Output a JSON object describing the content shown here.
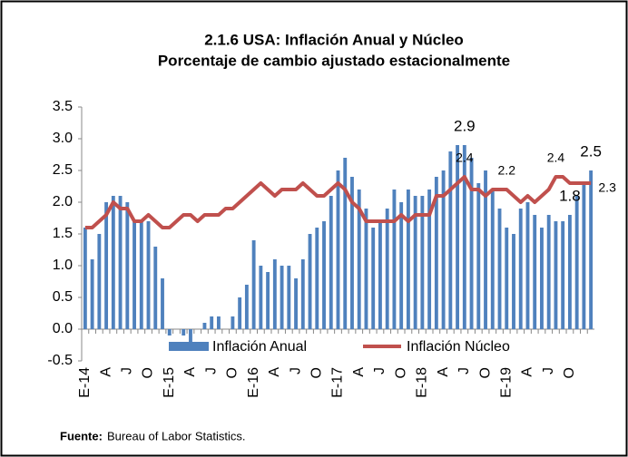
{
  "chart_data": {
    "type": "bar-line",
    "title": "2.1.6  USA: Inflación Anual y Núcleo",
    "subtitle": "Porcentaje de cambio ajustado estacionalmente",
    "categories": [
      "E-14",
      null,
      null,
      "A",
      null,
      null,
      "J",
      null,
      null,
      "O",
      null,
      null,
      "E-15",
      null,
      null,
      "A",
      null,
      null,
      "J",
      null,
      null,
      "O",
      null,
      null,
      "E-16",
      null,
      null,
      "A",
      null,
      null,
      "J",
      null,
      null,
      "O",
      null,
      null,
      "E-17",
      null,
      null,
      "A",
      null,
      null,
      "J",
      null,
      null,
      "O",
      null,
      null,
      "E-18",
      null,
      null,
      "A",
      null,
      null,
      "J",
      null,
      null,
      "O",
      null,
      null,
      "E-19",
      null,
      null,
      "A",
      null,
      null,
      "J",
      null,
      null,
      "O",
      null,
      null,
      null
    ],
    "series": [
      {
        "name": "Inflación Anual",
        "color": "#4f81bd",
        "kind": "bar",
        "values": [
          1.6,
          1.1,
          1.5,
          2.0,
          2.1,
          2.1,
          2.0,
          1.7,
          1.7,
          1.7,
          1.3,
          0.8,
          -0.1,
          0.0,
          -0.1,
          -0.2,
          0.0,
          0.1,
          0.2,
          0.2,
          0.0,
          0.2,
          0.5,
          0.7,
          1.4,
          1.0,
          0.9,
          1.1,
          1.0,
          1.0,
          0.8,
          1.1,
          1.5,
          1.6,
          1.7,
          2.1,
          2.5,
          2.7,
          2.4,
          2.2,
          1.9,
          1.6,
          1.7,
          1.9,
          2.2,
          2.0,
          2.2,
          2.1,
          2.1,
          2.2,
          2.4,
          2.5,
          2.8,
          2.9,
          2.9,
          2.7,
          2.3,
          2.5,
          2.2,
          1.9,
          1.6,
          1.5,
          1.9,
          2.0,
          1.8,
          1.6,
          1.8,
          1.7,
          1.7,
          1.8,
          2.1,
          2.3,
          2.5
        ]
      },
      {
        "name": "Inflación Núcleo",
        "color": "#c0504d",
        "kind": "line",
        "values": [
          1.6,
          1.6,
          1.7,
          1.8,
          2.0,
          1.9,
          1.9,
          1.7,
          1.7,
          1.8,
          1.7,
          1.6,
          1.6,
          1.7,
          1.8,
          1.8,
          1.7,
          1.8,
          1.8,
          1.8,
          1.9,
          1.9,
          2.0,
          2.1,
          2.2,
          2.3,
          2.2,
          2.1,
          2.2,
          2.2,
          2.2,
          2.3,
          2.2,
          2.1,
          2.1,
          2.2,
          2.3,
          2.2,
          2.0,
          1.9,
          1.7,
          1.7,
          1.7,
          1.7,
          1.7,
          1.8,
          1.7,
          1.8,
          1.8,
          1.8,
          2.1,
          2.1,
          2.2,
          2.3,
          2.4,
          2.2,
          2.2,
          2.1,
          2.2,
          2.2,
          2.2,
          2.1,
          2.0,
          2.1,
          2.0,
          2.1,
          2.2,
          2.4,
          2.4,
          2.3,
          2.3,
          2.3,
          2.3
        ]
      }
    ],
    "annotations": [
      {
        "text": "2.9",
        "series": 0,
        "index": 54
      },
      {
        "text": "2.4",
        "series": 1,
        "index": 54
      },
      {
        "text": "2.2",
        "series": 1,
        "index": 60
      },
      {
        "text": "2.4",
        "series": 1,
        "index": 67
      },
      {
        "text": "1.8",
        "series": 0,
        "index": 69
      },
      {
        "text": "2.5",
        "series": 0,
        "index": 72
      },
      {
        "text": "2.3",
        "series": 1,
        "index": 72
      }
    ],
    "ylim": [
      -0.5,
      3.5
    ],
    "yticks": [
      -0.5,
      {
        "value": 0,
        "label": "0.0"
      },
      0.5,
      {
        "value": 1,
        "label": "1.0"
      },
      1.5,
      {
        "value": 2,
        "label": "2.0"
      },
      2.5,
      {
        "value": 3,
        "label": "3.0"
      },
      3.5
    ],
    "legend": "bottom"
  },
  "footer": {
    "label": "Fuente:",
    "text": "Bureau of Labor Statistics."
  }
}
